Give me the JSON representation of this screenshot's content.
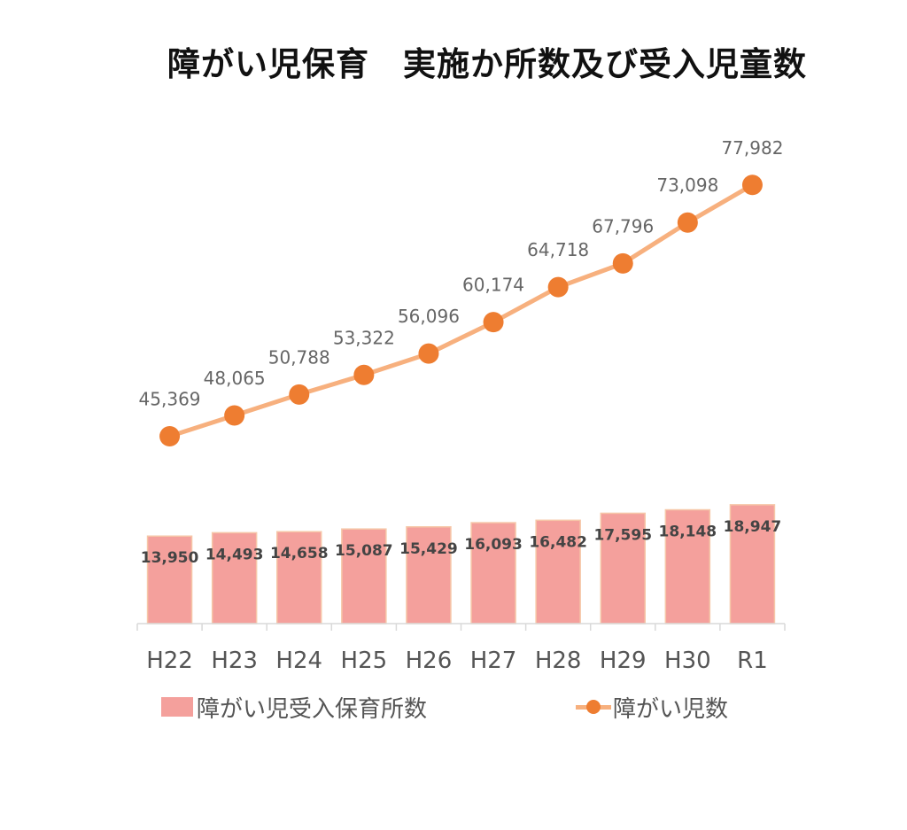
{
  "chart_data": {
    "type": "bar",
    "title": "障がい児保育　実施か所数及び受入児童数",
    "categories": [
      "H22",
      "H23",
      "H24",
      "H25",
      "H26",
      "H27",
      "H28",
      "H29",
      "H30",
      "R1"
    ],
    "series": [
      {
        "name": "障がい児受入保育所数",
        "type": "bar",
        "values": [
          13950,
          14493,
          14658,
          15087,
          15429,
          16093,
          16482,
          17595,
          18148,
          18947
        ],
        "labels": [
          "13,950",
          "14,493",
          "14,658",
          "15,087",
          "15,429",
          "16,093",
          "16,482",
          "17,595",
          "18,148",
          "18,947"
        ],
        "color": "#f4a09c"
      },
      {
        "name": "障がい児数",
        "type": "line",
        "values": [
          45369,
          48065,
          50788,
          53322,
          56096,
          60174,
          64718,
          67796,
          73098,
          77982
        ],
        "labels": [
          "45,369",
          "48,065",
          "50,788",
          "53,322",
          "56,096",
          "60,174",
          "64,718",
          "67,796",
          "73,098",
          "77,982"
        ],
        "color": "#ee7d31",
        "line_color": "#f7b07e"
      }
    ],
    "legend": "bottom",
    "grid": false,
    "axis_color": "#d9d9d9"
  }
}
